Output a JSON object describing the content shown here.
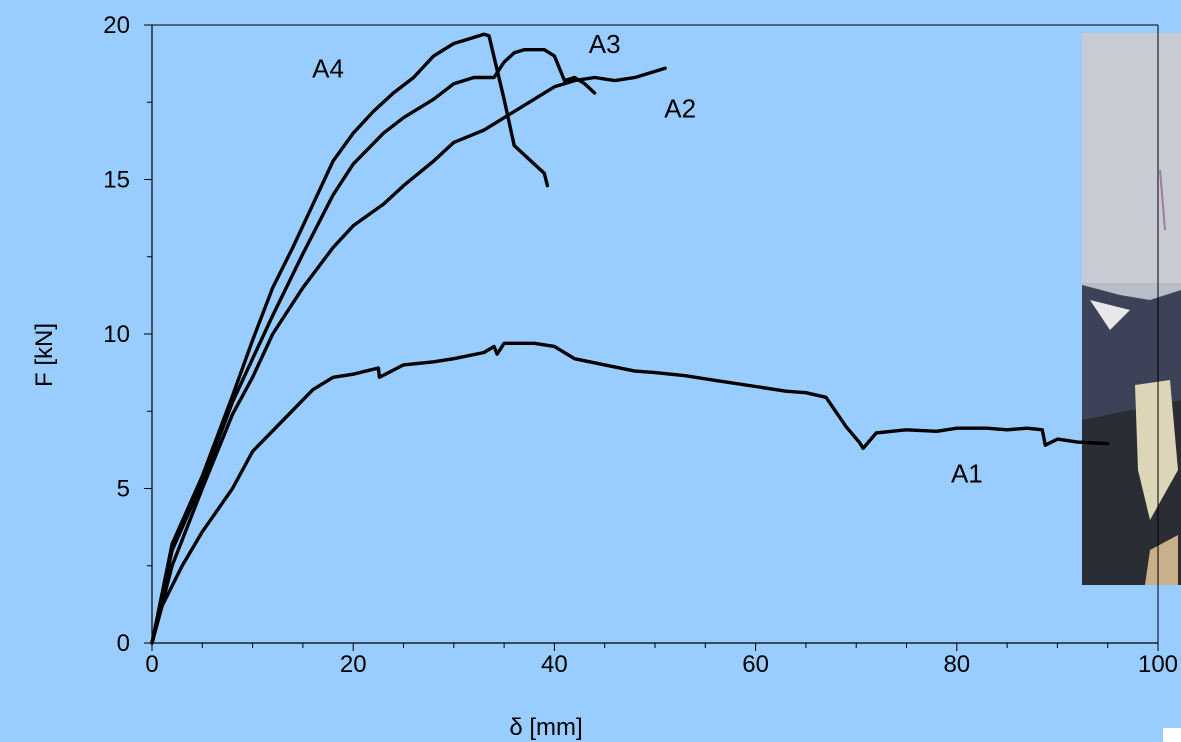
{
  "colors": {
    "background": "#99ccff",
    "line": "#000000"
  },
  "inset_photo": {
    "description_icon": "photo-icon"
  },
  "chart_data": {
    "type": "line",
    "title": "",
    "xlabel": "δ [mm]",
    "ylabel": "F [kN]",
    "xlim": [
      0,
      100
    ],
    "ylim": [
      0,
      20
    ],
    "xticks": [
      0,
      20,
      40,
      60,
      80,
      100
    ],
    "yticks": [
      0,
      5,
      10,
      15,
      20
    ],
    "grid": false,
    "series": [
      {
        "name": "A1",
        "x": [
          0,
          1,
          3,
          5,
          8,
          10,
          13,
          16,
          18,
          20,
          22.5,
          22.6,
          25,
          28,
          30,
          33,
          34,
          34.3,
          35,
          38,
          40,
          42,
          45,
          48,
          50,
          53,
          56,
          60,
          63,
          65,
          67,
          69,
          70.3,
          70.7,
          72,
          75,
          78,
          80,
          83,
          85,
          87,
          88.5,
          88.8,
          90,
          92,
          95
        ],
        "y": [
          0,
          1.2,
          2.5,
          3.6,
          5.0,
          6.2,
          7.2,
          8.2,
          8.6,
          8.7,
          8.9,
          8.6,
          9.0,
          9.1,
          9.2,
          9.4,
          9.6,
          9.35,
          9.7,
          9.7,
          9.6,
          9.2,
          9.0,
          8.8,
          8.75,
          8.65,
          8.5,
          8.3,
          8.15,
          8.1,
          7.95,
          7.0,
          6.5,
          6.3,
          6.8,
          6.9,
          6.85,
          6.95,
          6.95,
          6.9,
          6.95,
          6.9,
          6.4,
          6.6,
          6.5,
          6.45
        ]
      },
      {
        "name": "A2",
        "x": [
          0,
          2,
          5,
          8,
          10,
          12,
          15,
          18,
          20,
          23,
          25,
          28,
          30,
          33,
          35,
          38,
          40,
          42,
          44,
          46,
          48,
          50,
          51
        ],
        "y": [
          0,
          2.5,
          5.0,
          7.4,
          8.6,
          10.0,
          11.5,
          12.8,
          13.5,
          14.2,
          14.8,
          15.6,
          16.2,
          16.6,
          17.0,
          17.6,
          18.0,
          18.2,
          18.3,
          18.2,
          18.3,
          18.5,
          18.6
        ]
      },
      {
        "name": "A3",
        "x": [
          0,
          2,
          5,
          8,
          10,
          12,
          15,
          18,
          20,
          23,
          25,
          28,
          30,
          32,
          34,
          35,
          36,
          37,
          38,
          39,
          40,
          41,
          42,
          43,
          44
        ],
        "y": [
          0,
          3.0,
          5.2,
          7.8,
          9.2,
          10.6,
          12.6,
          14.5,
          15.5,
          16.5,
          17.0,
          17.6,
          18.1,
          18.3,
          18.3,
          18.8,
          19.1,
          19.2,
          19.2,
          19.2,
          19.0,
          18.2,
          18.3,
          18.1,
          17.8
        ]
      },
      {
        "name": "A4",
        "x": [
          0,
          2,
          5,
          8,
          10,
          12,
          14,
          16,
          18,
          20,
          22,
          24,
          26,
          28,
          30,
          31,
          32,
          33,
          33.5,
          35,
          36,
          37,
          38,
          39,
          39.3
        ],
        "y": [
          0,
          3.2,
          5.4,
          8.0,
          9.8,
          11.5,
          12.8,
          14.2,
          15.6,
          16.5,
          17.2,
          17.8,
          18.3,
          19.0,
          19.4,
          19.5,
          19.6,
          19.7,
          19.65,
          17.6,
          16.1,
          15.8,
          15.5,
          15.2,
          14.8
        ]
      }
    ],
    "annotations": [
      {
        "text": "A4",
        "x": 17.5,
        "y": 18.3
      },
      {
        "text": "A3",
        "x": 45,
        "y": 19.1
      },
      {
        "text": "A2",
        "x": 52.5,
        "y": 17.0
      },
      {
        "text": "A1",
        "x": 81,
        "y": 5.2
      }
    ]
  }
}
